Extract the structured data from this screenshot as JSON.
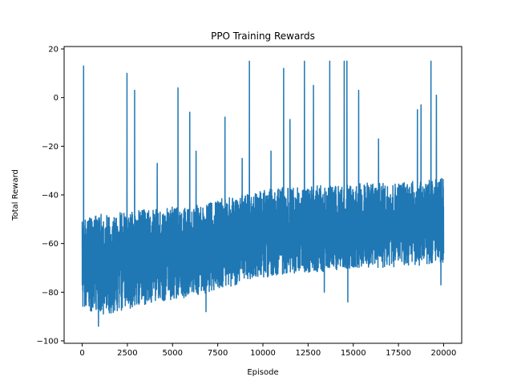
{
  "chart_data": {
    "type": "line",
    "title": "PPO Training Rewards",
    "xlabel": "Episode",
    "ylabel": "Total Reward",
    "xlim": [
      -1000,
      21000
    ],
    "ylim": [
      -101,
      21
    ],
    "xticks": [
      0,
      2500,
      5000,
      7500,
      10000,
      12500,
      15000,
      17500,
      20000
    ],
    "xtick_labels": [
      "0",
      "2500",
      "5000",
      "7500",
      "10000",
      "12500",
      "15000",
      "17500",
      "20000"
    ],
    "yticks": [
      -100,
      -80,
      -60,
      -40,
      -20,
      0,
      20
    ],
    "ytick_labels": [
      "−100",
      "−80",
      "−60",
      "−40",
      "−20",
      "0",
      "20"
    ],
    "grid": false,
    "series": [
      {
        "color": "#1f77b4",
        "episode_range": [
          0,
          20000
        ],
        "envelope": {
          "episode": [
            0,
            1000,
            2000,
            3000,
            4000,
            5000,
            6000,
            7000,
            8000,
            9000,
            10000,
            11000,
            12000,
            13000,
            14000,
            15000,
            16000,
            17000,
            18000,
            19000,
            20000
          ],
          "upper": [
            -50,
            -48,
            -47,
            -46,
            -46,
            -45,
            -45,
            -43,
            -41,
            -40,
            -38,
            -37,
            -37,
            -36,
            -36,
            -35,
            -35,
            -35,
            -34,
            -34,
            -33
          ],
          "lower": [
            -86,
            -90,
            -88,
            -86,
            -84,
            -83,
            -82,
            -80,
            -78,
            -76,
            -74,
            -73,
            -72,
            -72,
            -71,
            -70,
            -70,
            -70,
            -69,
            -69,
            -68
          ],
          "median": [
            -68,
            -68,
            -67,
            -66,
            -65,
            -64,
            -63,
            -61,
            -59,
            -58,
            -56,
            -55,
            -55,
            -54,
            -54,
            -53,
            -53,
            -52,
            -52,
            -51,
            -50
          ]
        },
        "spikes": [
          {
            "episode": 80,
            "value": 13
          },
          {
            "episode": 900,
            "value": -94
          },
          {
            "episode": 2480,
            "value": 10
          },
          {
            "episode": 2900,
            "value": 3
          },
          {
            "episode": 4150,
            "value": -27
          },
          {
            "episode": 5300,
            "value": 4
          },
          {
            "episode": 5950,
            "value": -6
          },
          {
            "episode": 6300,
            "value": -22
          },
          {
            "episode": 6850,
            "value": -88
          },
          {
            "episode": 7900,
            "value": -8
          },
          {
            "episode": 8850,
            "value": -25
          },
          {
            "episode": 9250,
            "value": 15
          },
          {
            "episode": 10450,
            "value": -22
          },
          {
            "episode": 11150,
            "value": 12
          },
          {
            "episode": 11500,
            "value": -9
          },
          {
            "episode": 12300,
            "value": 15
          },
          {
            "episode": 12800,
            "value": 5
          },
          {
            "episode": 13400,
            "value": -80
          },
          {
            "episode": 13700,
            "value": 15
          },
          {
            "episode": 14500,
            "value": 15
          },
          {
            "episode": 14650,
            "value": 15
          },
          {
            "episode": 14700,
            "value": -84
          },
          {
            "episode": 15300,
            "value": 3
          },
          {
            "episode": 16400,
            "value": -17
          },
          {
            "episode": 18550,
            "value": -5
          },
          {
            "episode": 18750,
            "value": -3
          },
          {
            "episode": 19300,
            "value": 15
          },
          {
            "episode": 19600,
            "value": 1
          },
          {
            "episode": 19850,
            "value": -77
          }
        ]
      }
    ]
  }
}
